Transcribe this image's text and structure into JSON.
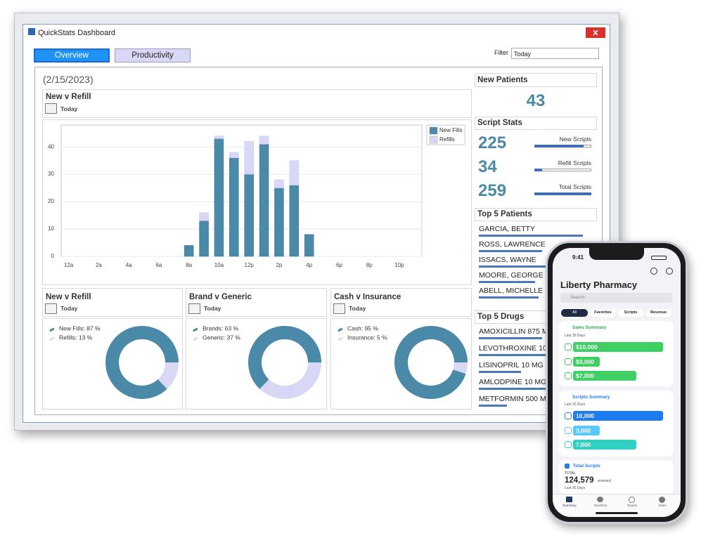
{
  "window": {
    "title": "QuickStats Dashboard"
  },
  "tabs": [
    "Overview",
    "Productivity"
  ],
  "filter": {
    "label": "Filter",
    "value": "Today"
  },
  "date": "(2/15/2023)",
  "chart_data": [
    {
      "type": "bar",
      "stacked": true,
      "title": "New v Refill",
      "subtitle": "Today",
      "categories": [
        "12a",
        null,
        "2a",
        null,
        "4a",
        null,
        "6a",
        null,
        "8a",
        null,
        "10a",
        null,
        "12p",
        null,
        "2p",
        null,
        "4p",
        null,
        "6p",
        null,
        "8p",
        null,
        "10p",
        null
      ],
      "series": [
        {
          "name": "New Fills",
          "color": "#4a8aa8",
          "values": [
            0,
            0,
            0,
            0,
            0,
            0,
            0,
            0,
            4,
            13,
            43,
            36,
            30,
            41,
            25,
            26,
            8,
            0,
            0,
            0,
            0,
            0,
            0,
            0
          ]
        },
        {
          "name": "Refills",
          "color": "#d8d8f6",
          "values": [
            0,
            0,
            0,
            0,
            0,
            0,
            0,
            0,
            0,
            3,
            1,
            2,
            12,
            3,
            3,
            9,
            0,
            0,
            0,
            0,
            0,
            0,
            0,
            0
          ]
        }
      ],
      "ylim": [
        0,
        48
      ],
      "yticks": [
        0,
        10,
        20,
        30,
        40
      ],
      "grid": true,
      "legend": "top-right"
    },
    {
      "type": "pie",
      "title": "New v Refill",
      "subtitle": "Today",
      "values": [
        87,
        13
      ],
      "value_labels": [
        "New Fills: 87 %",
        "Refills: 13 %"
      ],
      "colors": [
        "#4a8aa8",
        "#d8d8f6"
      ]
    },
    {
      "type": "pie",
      "title": "Brand v Generic",
      "subtitle": "Today",
      "values": [
        63,
        37
      ],
      "value_labels": [
        "Brands: 63 %",
        "Generic: 37 %"
      ],
      "colors": [
        "#4a8aa8",
        "#d8d8f6"
      ]
    },
    {
      "type": "pie",
      "title": "Cash v Insurance",
      "subtitle": "Today",
      "values": [
        95,
        5
      ],
      "value_labels": [
        "Cash: 95 %",
        "Insurance: 5 %"
      ],
      "colors": [
        "#4a8aa8",
        "#d8d8f6"
      ]
    }
  ],
  "new_patients": {
    "title": "New Patients",
    "value": 43
  },
  "script_stats": {
    "title": "Script Stats",
    "items": [
      {
        "value": 225,
        "label": "New Scripts"
      },
      {
        "value": 34,
        "label": "Refill Scripts"
      },
      {
        "value": 259,
        "label": "Total Scripts"
      }
    ]
  },
  "top_patients": {
    "title": "Top 5 Patients",
    "names": [
      "GARCIA, BETTY",
      "ROSS, LAWRENCE",
      "ISSACS, WAYNE",
      "MOORE, GEORGE",
      "ABELL, MICHELLE"
    ]
  },
  "top_drugs": {
    "title": "Top 5 Drugs",
    "names": [
      "AMOXICILLIN 875 M",
      "LEVOTHROXINE 10",
      "LISINOPRIL 10 MG",
      "AMLODPINE 10 MG",
      "METFORMIN 500 M"
    ]
  },
  "phone": {
    "time": "9:41",
    "title": "Liberty Pharmacy",
    "search": "Search",
    "chips": [
      "All",
      "Favorites",
      "Scripts",
      "Revenue"
    ],
    "sales": {
      "title": "Sales Summary",
      "period": "Last 30 Days",
      "values": [
        10000,
        3000,
        7000
      ],
      "value_labels": [
        "$10,000",
        "$3,000",
        "$7,000"
      ]
    },
    "scripts": {
      "title": "Scripts Summary",
      "period": "Last 30 Days",
      "values": [
        10000,
        3000,
        7000
      ],
      "value_labels": [
        "10,000",
        "3,000",
        "7,000"
      ]
    },
    "total": {
      "title": "Total Scripts",
      "caption": "TOTAL",
      "value": 124579,
      "value_label": "124,579",
      "unit": "entered",
      "period": "Last 30 Days"
    },
    "tabs": [
      "Summary",
      "Workflow",
      "Targets",
      "Sales"
    ]
  }
}
